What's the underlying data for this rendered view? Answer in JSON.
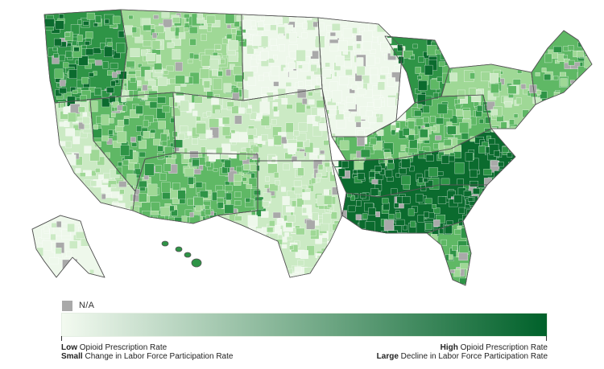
{
  "map": {
    "regions": [
      {
        "name": "pacific-northwest",
        "shade": 4
      },
      {
        "name": "california",
        "shade": 1
      },
      {
        "name": "great-basin",
        "shade": 3
      },
      {
        "name": "southwest",
        "shade": 3
      },
      {
        "name": "northern-rockies",
        "shade": 2
      },
      {
        "name": "northern-plains",
        "shade": 0
      },
      {
        "name": "central-plains",
        "shade": 1
      },
      {
        "name": "texas",
        "shade": 1
      },
      {
        "name": "upper-midwest",
        "shade": 0
      },
      {
        "name": "michigan",
        "shade": 4
      },
      {
        "name": "ohio-valley",
        "shade": 3
      },
      {
        "name": "appalachia",
        "shade": 5
      },
      {
        "name": "deep-south",
        "shade": 5
      },
      {
        "name": "florida",
        "shade": 3
      },
      {
        "name": "northeast",
        "shade": 2
      },
      {
        "name": "new-england",
        "shade": 3
      },
      {
        "name": "alaska",
        "shade": 0
      },
      {
        "name": "hawaii",
        "shade": 4
      }
    ],
    "palette": [
      "#eef8eb",
      "#cbeac4",
      "#9fd896",
      "#5fb865",
      "#2e9446",
      "#0b6b2e"
    ],
    "na_color": "#a9a9a9",
    "border_color": "#555555"
  },
  "legend": {
    "na_label": "N/A",
    "gradient_start": "#f3faf0",
    "gradient_end": "#00612a",
    "left_line1_bold": "Low",
    "left_line1_rest": " Opioid Prescription Rate",
    "left_line2_bold": "Small",
    "left_line2_rest": " Change in Labor Force Participation Rate",
    "right_line1_bold": "High",
    "right_line1_rest": " Opioid Prescription Rate",
    "right_line2_bold": "Large",
    "right_line2_rest": " Decline in Labor Force Participation Rate"
  }
}
